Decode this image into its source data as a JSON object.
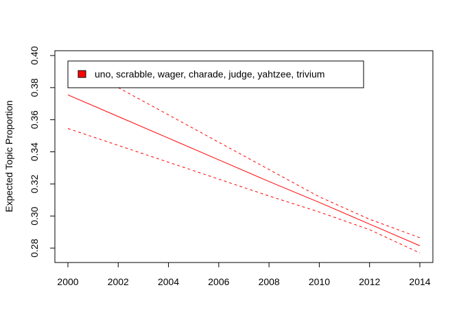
{
  "chart_data": {
    "type": "line",
    "title": "",
    "xlabel": "",
    "ylabel": "Expected Topic Proportion",
    "xlim": [
      2000,
      2014
    ],
    "ylim": [
      0.27,
      0.4
    ],
    "xticks": [
      2000,
      2002,
      2004,
      2006,
      2008,
      2010,
      2012,
      2014
    ],
    "xtick_labels": [
      "2000",
      "2002",
      "2004",
      "2006",
      "2008",
      "2010",
      "2012",
      "2014"
    ],
    "yticks": [
      0.28,
      0.3,
      0.32,
      0.34,
      0.36,
      0.38,
      0.4
    ],
    "ytick_labels": [
      "0.28",
      "0.30",
      "0.32",
      "0.34",
      "0.36",
      "0.38",
      "0.40"
    ],
    "grid": false,
    "legend": {
      "placement": "top-left",
      "entries": [
        "uno, scrabble, wager, charade, judge, yahtzee, trivium"
      ]
    },
    "series": [
      {
        "name": "uno, scrabble, wager, charade, judge, yahtzee, trivium",
        "style": "solid",
        "color": "#ff0000",
        "x": [
          2000,
          2002,
          2004,
          2006,
          2008,
          2010,
          2012,
          2014
        ],
        "values": [
          0.3755,
          0.362,
          0.3485,
          0.335,
          0.3215,
          0.3085,
          0.295,
          0.2815
        ]
      },
      {
        "style": "dashed",
        "color": "#ff0000",
        "x": [
          2002,
          2004,
          2006,
          2008,
          2010,
          2012,
          2014
        ],
        "values": [
          0.38,
          0.363,
          0.346,
          0.329,
          0.312,
          0.298,
          0.2865
        ]
      },
      {
        "style": "dashed",
        "color": "#ff0000",
        "x": [
          2000,
          2002,
          2004,
          2006,
          2008,
          2010,
          2012,
          2014
        ],
        "values": [
          0.3545,
          0.344,
          0.3335,
          0.323,
          0.3125,
          0.3025,
          0.2915,
          0.277
        ]
      }
    ]
  }
}
